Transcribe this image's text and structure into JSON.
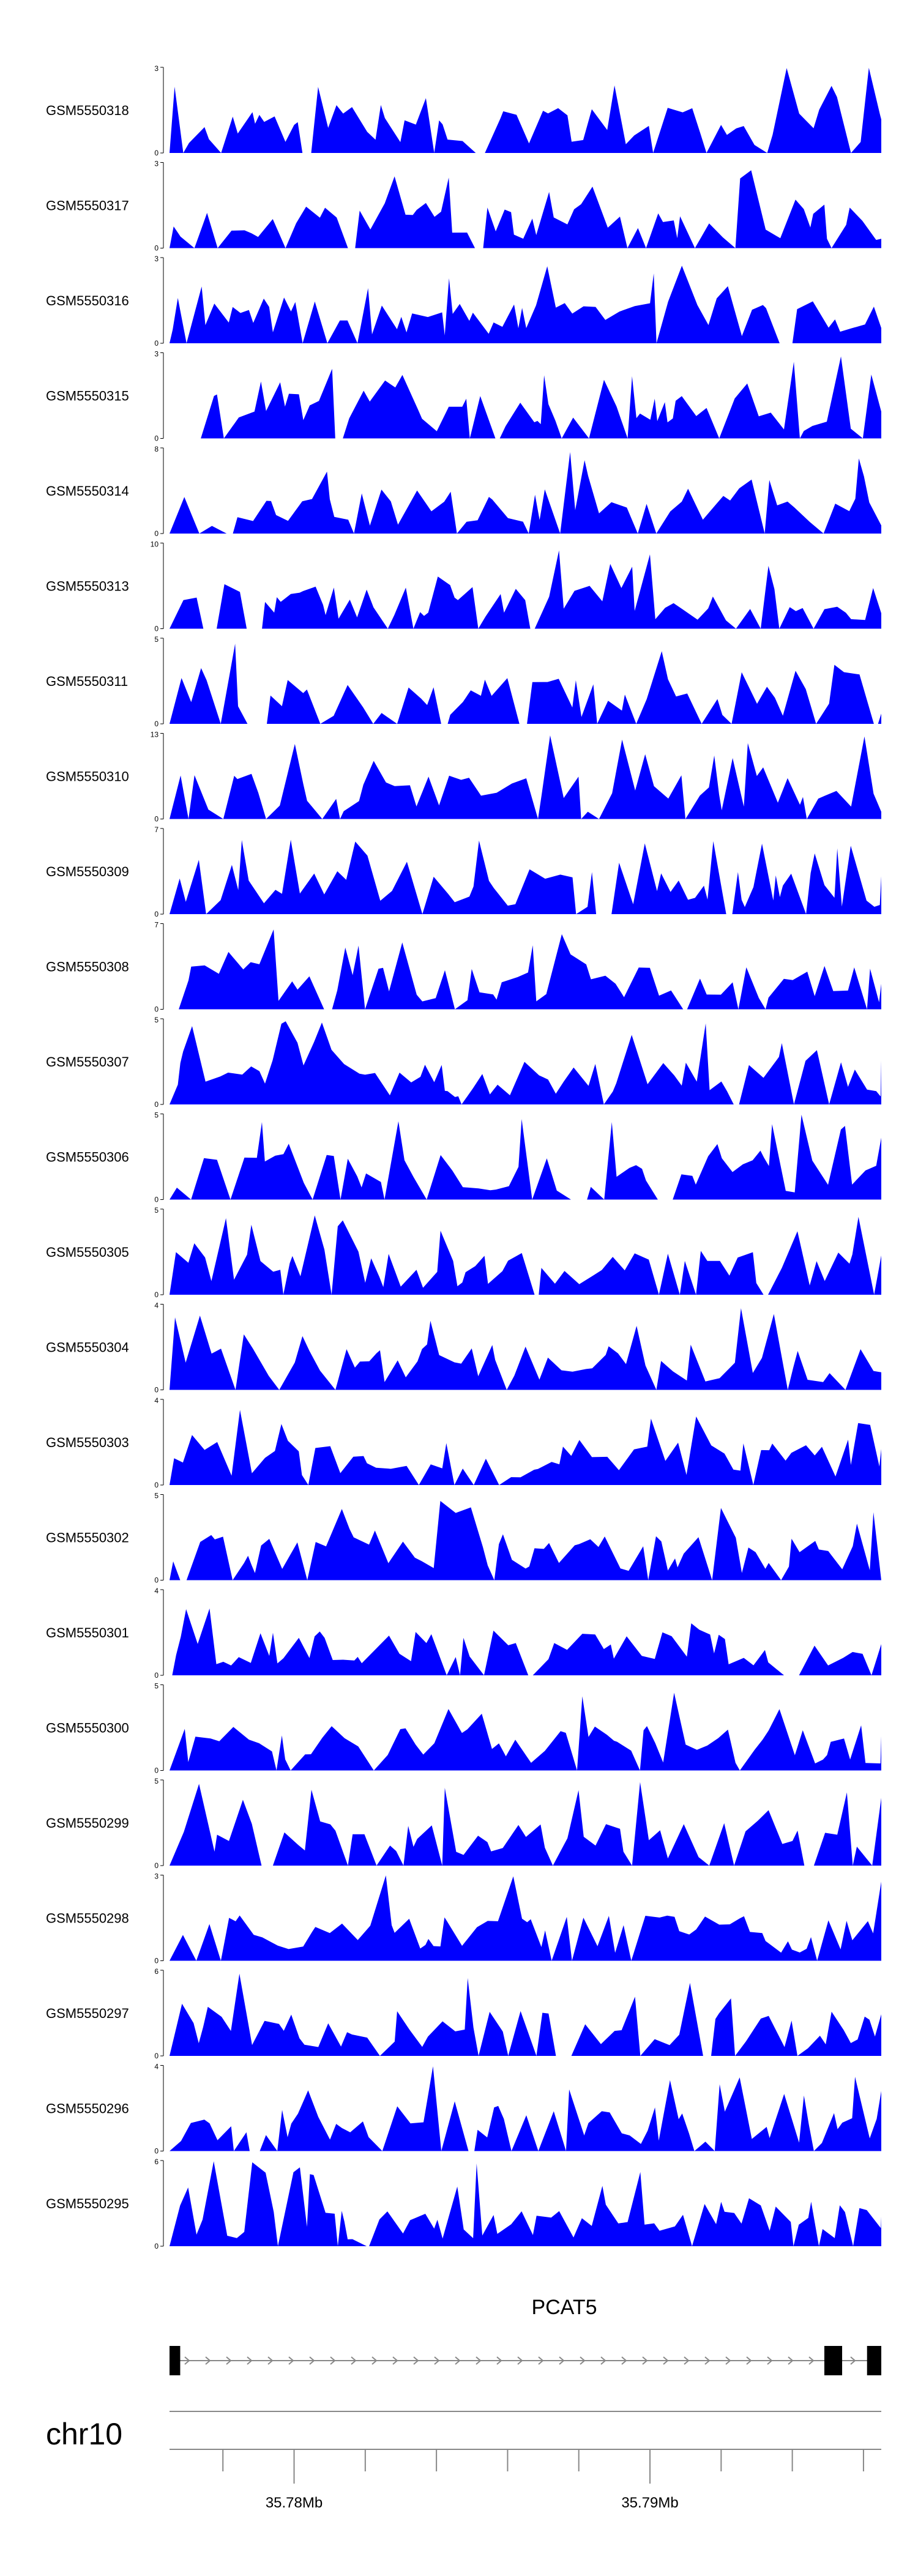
{
  "colors": {
    "signal": "#0000ff",
    "axis": "#000000",
    "gene": "#000000",
    "intron": "#888888",
    "ideogram": "#888888"
  },
  "chart_data": {
    "type": "area",
    "chromosome": "chr10",
    "x_range": [
      35.7745,
      35.7945
    ],
    "x_unit": "Mb",
    "tracks": [
      {
        "name": "GSM5550318",
        "ymax": "3",
        "seed": 318
      },
      {
        "name": "GSM5550317",
        "ymax": "3",
        "seed": 317
      },
      {
        "name": "GSM5550316",
        "ymax": "3",
        "seed": 316
      },
      {
        "name": "GSM5550315",
        "ymax": "3",
        "seed": 315
      },
      {
        "name": "GSM5550314",
        "ymax": "8",
        "seed": 314
      },
      {
        "name": "GSM5550313",
        "ymax": "10",
        "seed": 313
      },
      {
        "name": "GSM5550311",
        "ymax": "5",
        "seed": 311
      },
      {
        "name": "GSM5550310",
        "ymax": "13",
        "seed": 310
      },
      {
        "name": "GSM5550309",
        "ymax": "7",
        "seed": 309
      },
      {
        "name": "GSM5550308",
        "ymax": "7",
        "seed": 308
      },
      {
        "name": "GSM5550307",
        "ymax": "5",
        "seed": 307
      },
      {
        "name": "GSM5550306",
        "ymax": "5",
        "seed": 306
      },
      {
        "name": "GSM5550305",
        "ymax": "5",
        "seed": 305
      },
      {
        "name": "GSM5550304",
        "ymax": "4",
        "seed": 304
      },
      {
        "name": "GSM5550303",
        "ymax": "4",
        "seed": 303
      },
      {
        "name": "GSM5550302",
        "ymax": "5",
        "seed": 302
      },
      {
        "name": "GSM5550301",
        "ymax": "4",
        "seed": 301
      },
      {
        "name": "GSM5550300",
        "ymax": "5",
        "seed": 300
      },
      {
        "name": "GSM5550299",
        "ymax": "5",
        "seed": 299
      },
      {
        "name": "GSM5550298",
        "ymax": "3",
        "seed": 298
      },
      {
        "name": "GSM5550297",
        "ymax": "6",
        "seed": 297
      },
      {
        "name": "GSM5550296",
        "ymax": "4",
        "seed": 296
      },
      {
        "name": "GSM5550295",
        "ymax": "6",
        "seed": 295
      }
    ],
    "ymin_label": "0",
    "gene": {
      "name": "PCAT5",
      "start": 35.7745,
      "end": 35.7945,
      "exons": [
        [
          35.7745,
          35.7748
        ],
        [
          35.7929,
          35.7934
        ],
        [
          35.7941,
          35.7945
        ]
      ],
      "strand": "+"
    },
    "axis_ticks": [
      35.776,
      35.778,
      35.78,
      35.782,
      35.784,
      35.786,
      35.788,
      35.79,
      35.792,
      35.794
    ],
    "axis_labels": [
      {
        "value": 35.778,
        "text": "35.78Mb"
      },
      {
        "value": 35.788,
        "text": "35.79Mb"
      }
    ]
  }
}
